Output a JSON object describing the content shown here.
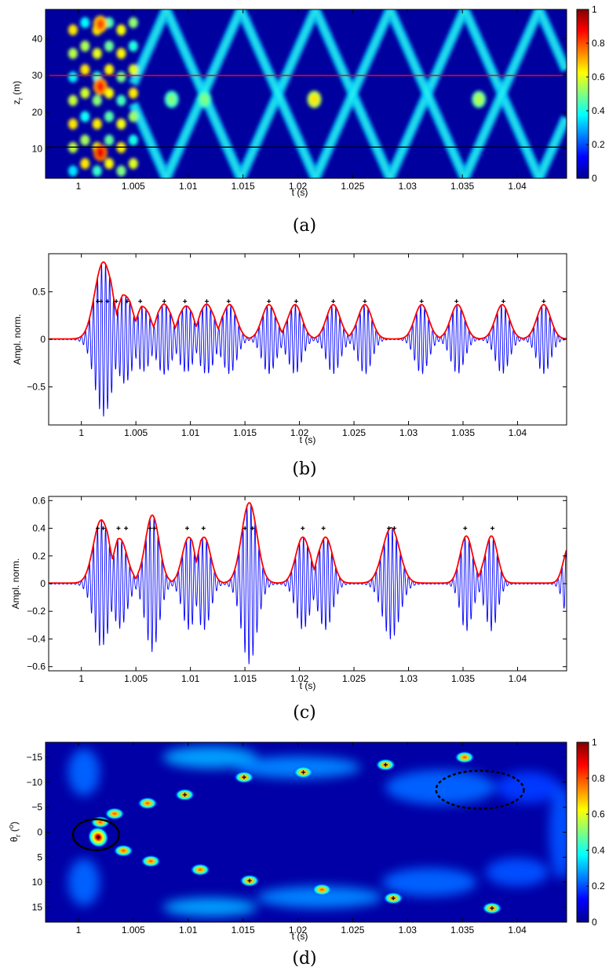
{
  "chart_data": [
    {
      "type": "heatmap",
      "panel": "(a)",
      "xlabel": "t (s)",
      "ylabel": "z_r (m)",
      "xlim": [
        0.997,
        1.0445
      ],
      "ylim": [
        48,
        2
      ],
      "xticks": [
        1,
        1.005,
        1.01,
        1.015,
        1.02,
        1.025,
        1.03,
        1.035,
        1.04
      ],
      "xtick_labels": [
        "1",
        "1.005",
        "1.01",
        "1.015",
        "1.02",
        "1.025",
        "1.03",
        "1.035",
        "1.04"
      ],
      "yticks": [
        10,
        20,
        30,
        40
      ],
      "ytick_labels": [
        "10",
        "20",
        "30",
        "40"
      ],
      "colorbar": {
        "range": [
          0,
          1
        ],
        "ticks": [
          0,
          0.2,
          0.4,
          0.6,
          0.8,
          1
        ],
        "tick_labels": [
          "0",
          "0.2",
          "0.4",
          "0.6",
          "0.8",
          "1"
        ]
      },
      "reference_lines": [
        {
          "depth": 10.5,
          "color": "#000000"
        },
        {
          "depth": 30,
          "color": "#ff0000"
        }
      ],
      "hotspots": [
        {
          "t": 1.002,
          "z": 9,
          "v": 0.9
        },
        {
          "t": 1.002,
          "z": 27,
          "v": 0.85
        },
        {
          "t": 1.002,
          "z": 44,
          "v": 0.8
        },
        {
          "t": 1.0215,
          "z": 23.5,
          "v": 0.65
        },
        {
          "t": 1.0365,
          "z": 23.5,
          "v": 0.55
        },
        {
          "t": 1.0085,
          "z": 23.5,
          "v": 0.5
        },
        {
          "t": 1.0115,
          "z": 23.5,
          "v": 0.5
        }
      ]
    },
    {
      "type": "line",
      "panel": "(b)",
      "xlabel": "t (s)",
      "ylabel": "Ampl. norm.",
      "xlim": [
        0.997,
        1.0445
      ],
      "ylim": [
        -0.9,
        0.9
      ],
      "xticks": [
        1,
        1.005,
        1.01,
        1.015,
        1.02,
        1.025,
        1.03,
        1.035,
        1.04
      ],
      "xtick_labels": [
        "1",
        "1.005",
        "1.01",
        "1.015",
        "1.02",
        "1.025",
        "1.03",
        "1.035",
        "1.04"
      ],
      "yticks": [
        0.5,
        0,
        -0.5
      ],
      "ytick_labels": [
        "0.5",
        "0",
        "−0.5"
      ],
      "series": [
        {
          "kind": "signal",
          "color": "#0000ff"
        },
        {
          "kind": "envelope",
          "color": "#ff0000"
        }
      ],
      "pulses": [
        {
          "t": 1.002,
          "a": 0.8,
          "w": 0.0011
        },
        {
          "t": 1.004,
          "a": 0.42,
          "w": 0.001
        },
        {
          "t": 1.0057,
          "a": 0.31,
          "w": 0.0009
        },
        {
          "t": 1.0076,
          "a": 0.36,
          "w": 0.0009
        },
        {
          "t": 1.0096,
          "a": 0.34,
          "w": 0.0009
        },
        {
          "t": 1.0115,
          "a": 0.36,
          "w": 0.0009
        },
        {
          "t": 1.0136,
          "a": 0.36,
          "w": 0.0009
        },
        {
          "t": 1.0172,
          "a": 0.36,
          "w": 0.0009
        },
        {
          "t": 1.0196,
          "a": 0.36,
          "w": 0.0009
        },
        {
          "t": 1.0231,
          "a": 0.36,
          "w": 0.0009
        },
        {
          "t": 1.026,
          "a": 0.36,
          "w": 0.0009
        },
        {
          "t": 1.0312,
          "a": 0.36,
          "w": 0.0009
        },
        {
          "t": 1.0345,
          "a": 0.36,
          "w": 0.0009
        },
        {
          "t": 1.0386,
          "a": 0.36,
          "w": 0.0009
        },
        {
          "t": 1.0424,
          "a": 0.36,
          "w": 0.0009
        }
      ],
      "markers": [
        1.0015,
        1.0018,
        1.0024,
        1.0032,
        1.0042,
        1.0054,
        1.0076,
        1.0095,
        1.0115,
        1.0135,
        1.0172,
        1.0197,
        1.0231,
        1.026,
        1.0312,
        1.0344,
        1.0387,
        1.0424
      ],
      "marker_y": 0.4
    },
    {
      "type": "line",
      "panel": "(c)",
      "xlabel": "t (s)",
      "ylabel": "Ampl. norm.",
      "xlim": [
        0.997,
        1.0445
      ],
      "ylim": [
        -0.63,
        0.63
      ],
      "xticks": [
        1,
        1.005,
        1.01,
        1.015,
        1.02,
        1.025,
        1.03,
        1.035,
        1.04
      ],
      "xtick_labels": [
        "1",
        "1.005",
        "1.01",
        "1.015",
        "1.02",
        "1.025",
        "1.03",
        "1.035",
        "1.04"
      ],
      "yticks": [
        0.6,
        0.4,
        0.2,
        0,
        -0.2,
        -0.4,
        -0.6
      ],
      "ytick_labels": [
        "0.6",
        "0.4",
        "0.2",
        "0",
        "−0.2",
        "−0.4",
        "−0.6"
      ],
      "series": [
        {
          "kind": "signal",
          "color": "#0000ff"
        },
        {
          "kind": "envelope",
          "color": "#ff0000"
        }
      ],
      "pulses": [
        {
          "t": 1.0018,
          "a": 0.45,
          "w": 0.001
        },
        {
          "t": 1.0036,
          "a": 0.3,
          "w": 0.0009
        },
        {
          "t": 1.0065,
          "a": 0.49,
          "w": 0.0009
        },
        {
          "t": 1.0098,
          "a": 0.32,
          "w": 0.0008
        },
        {
          "t": 1.0113,
          "a": 0.32,
          "w": 0.0008
        },
        {
          "t": 1.0154,
          "a": 0.58,
          "w": 0.001
        },
        {
          "t": 1.0203,
          "a": 0.33,
          "w": 0.0009
        },
        {
          "t": 1.0224,
          "a": 0.33,
          "w": 0.0009
        },
        {
          "t": 1.0284,
          "a": 0.4,
          "w": 0.0011
        },
        {
          "t": 1.0353,
          "a": 0.34,
          "w": 0.0008
        },
        {
          "t": 1.0376,
          "a": 0.34,
          "w": 0.0008
        },
        {
          "t": 1.0447,
          "a": 0.26,
          "w": 0.0007
        }
      ],
      "markers": [
        1.0015,
        1.002,
        1.0034,
        1.0041,
        1.0063,
        1.0067,
        1.0097,
        1.0112,
        1.015,
        1.0157,
        1.0203,
        1.0222,
        1.0282,
        1.0287,
        1.0352,
        1.0377
      ],
      "marker_y": 0.4
    },
    {
      "type": "heatmap",
      "panel": "(d)",
      "xlabel": "t (s)",
      "ylabel": "θ_r (°)",
      "xlim": [
        0.997,
        1.0445
      ],
      "ylim": [
        -18,
        18
      ],
      "xticks": [
        1,
        1.005,
        1.01,
        1.015,
        1.02,
        1.025,
        1.03,
        1.035,
        1.04
      ],
      "xtick_labels": [
        "1",
        "1.005",
        "1.01",
        "1.015",
        "1.02",
        "1.025",
        "1.03",
        "1.035",
        "1.04"
      ],
      "yticks": [
        -15,
        -10,
        -5,
        0,
        5,
        10,
        15
      ],
      "ytick_labels": [
        "−15",
        "−10",
        "−5",
        "0",
        "5",
        "10",
        "15"
      ],
      "colorbar": {
        "range": [
          0,
          1
        ],
        "ticks": [
          0,
          0.2,
          0.4,
          0.6,
          0.8,
          1
        ],
        "tick_labels": [
          "0",
          "0.2",
          "0.4",
          "0.6",
          "0.8",
          "1"
        ]
      },
      "spots": [
        {
          "t": 1.0018,
          "theta": 1.0,
          "v": 1.0
        },
        {
          "t": 1.002,
          "theta": -2.0,
          "v": 0.75
        },
        {
          "t": 1.0033,
          "theta": -3.7,
          "v": 0.75
        },
        {
          "t": 1.0041,
          "theta": 3.7,
          "v": 0.75
        },
        {
          "t": 1.0063,
          "theta": -5.8,
          "v": 0.7
        },
        {
          "t": 1.0066,
          "theta": 5.8,
          "v": 0.7
        },
        {
          "t": 1.0097,
          "theta": -7.5,
          "v": 0.7
        },
        {
          "t": 1.0111,
          "theta": 7.5,
          "v": 0.7
        },
        {
          "t": 1.0151,
          "theta": -11.0,
          "v": 0.75
        },
        {
          "t": 1.0156,
          "theta": 9.7,
          "v": 0.75
        },
        {
          "t": 1.0205,
          "theta": -12.0,
          "v": 0.9
        },
        {
          "t": 1.0222,
          "theta": 11.5,
          "v": 0.85
        },
        {
          "t": 1.028,
          "theta": -13.5,
          "v": 0.75
        },
        {
          "t": 1.0287,
          "theta": 13.2,
          "v": 0.75
        },
        {
          "t": 1.0352,
          "theta": -15.0,
          "v": 0.75
        },
        {
          "t": 1.0377,
          "theta": 15.2,
          "v": 0.75
        }
      ],
      "markers": [
        {
          "t": 1.0018,
          "theta": 1.0
        },
        {
          "t": 1.028,
          "theta": -13.5
        },
        {
          "t": 1.0097,
          "theta": -7.5
        },
        {
          "t": 1.0151,
          "theta": -11.0
        },
        {
          "t": 1.0156,
          "theta": 9.7
        },
        {
          "t": 1.0287,
          "theta": 13.2
        },
        {
          "t": 1.0377,
          "theta": 15.2
        },
        {
          "t": 1.0205,
          "theta": -12.0
        }
      ],
      "annotations": [
        {
          "shape": "ellipse",
          "style": "solid",
          "t": 1.0016,
          "theta": 0.5,
          "rt": 0.0021,
          "rtheta": 3.1
        },
        {
          "shape": "ellipse",
          "style": "dashed",
          "t": 1.0366,
          "theta": -8.5,
          "rt": 0.004,
          "rtheta": 3.8
        }
      ]
    }
  ],
  "captions": {
    "a": "(a)",
    "b": "(b)",
    "c": "(c)",
    "d": "(d)"
  }
}
